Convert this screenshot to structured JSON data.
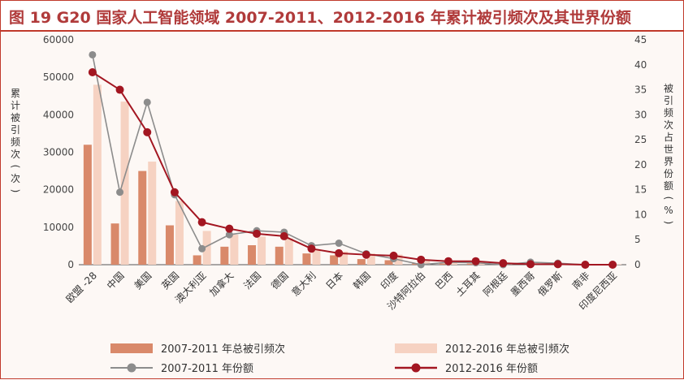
{
  "title": "图 19  G20 国家人工智能领域 2007-2011、2012-2016 年累计被引频次及其世界份额",
  "chart_data": {
    "type": "bar",
    "categories": [
      "欧盟 -28",
      "中国",
      "美国",
      "英国",
      "澳大利亚",
      "加拿大",
      "法国",
      "德国",
      "意大利",
      "日本",
      "韩国",
      "印度",
      "沙特阿拉伯",
      "巴西",
      "土耳其",
      "阿根廷",
      "墨西哥",
      "俄罗斯",
      "南非",
      "印度尼西亚"
    ],
    "y_left": {
      "label": "累计被引频次（次）",
      "ylim": [
        0,
        60000
      ],
      "ticks": [
        0,
        10000,
        20000,
        30000,
        40000,
        50000,
        60000
      ]
    },
    "y_right": {
      "label": "被引频次占世界份额（%）",
      "ylim": [
        0,
        45
      ],
      "ticks": [
        0,
        5,
        10,
        15,
        20,
        25,
        30,
        35,
        40,
        45
      ]
    },
    "series": [
      {
        "name": "2007-2011 年总被引频次",
        "kind": "bar",
        "axis": "left",
        "color": "#d9896a",
        "values": [
          32000,
          11000,
          25000,
          10500,
          2500,
          4800,
          5200,
          4800,
          3000,
          2500,
          1500,
          1200,
          400,
          300,
          300,
          100,
          150,
          50,
          30,
          20
        ]
      },
      {
        "name": "2012-2016 年总被引频次",
        "kind": "bar",
        "axis": "left",
        "color": "#f6d2c2",
        "values": [
          48000,
          43500,
          27500,
          17000,
          9000,
          8000,
          7500,
          7000,
          4000,
          3500,
          3000,
          2700,
          1200,
          1000,
          900,
          500,
          400,
          300,
          200,
          150
        ]
      },
      {
        "name": "2007-2011 年份额",
        "kind": "line",
        "axis": "right",
        "color": "#8c8c8c",
        "values": [
          42,
          14.5,
          32.5,
          14,
          3.2,
          6,
          6.8,
          6.5,
          3.8,
          4.3,
          2.2,
          1.2,
          0,
          0.5,
          0.4,
          0,
          0.5,
          0.3,
          0,
          0
        ]
      },
      {
        "name": "2012-2016 年份额",
        "kind": "line",
        "axis": "right",
        "color": "#a31621",
        "values": [
          38.5,
          35,
          26.5,
          14.5,
          8.5,
          7.2,
          6.2,
          5.7,
          3.2,
          2.3,
          2,
          1.8,
          1,
          0.7,
          0.7,
          0.3,
          0.1,
          0.1,
          0,
          0
        ]
      }
    ],
    "grid": false,
    "legend_position": "bottom"
  }
}
